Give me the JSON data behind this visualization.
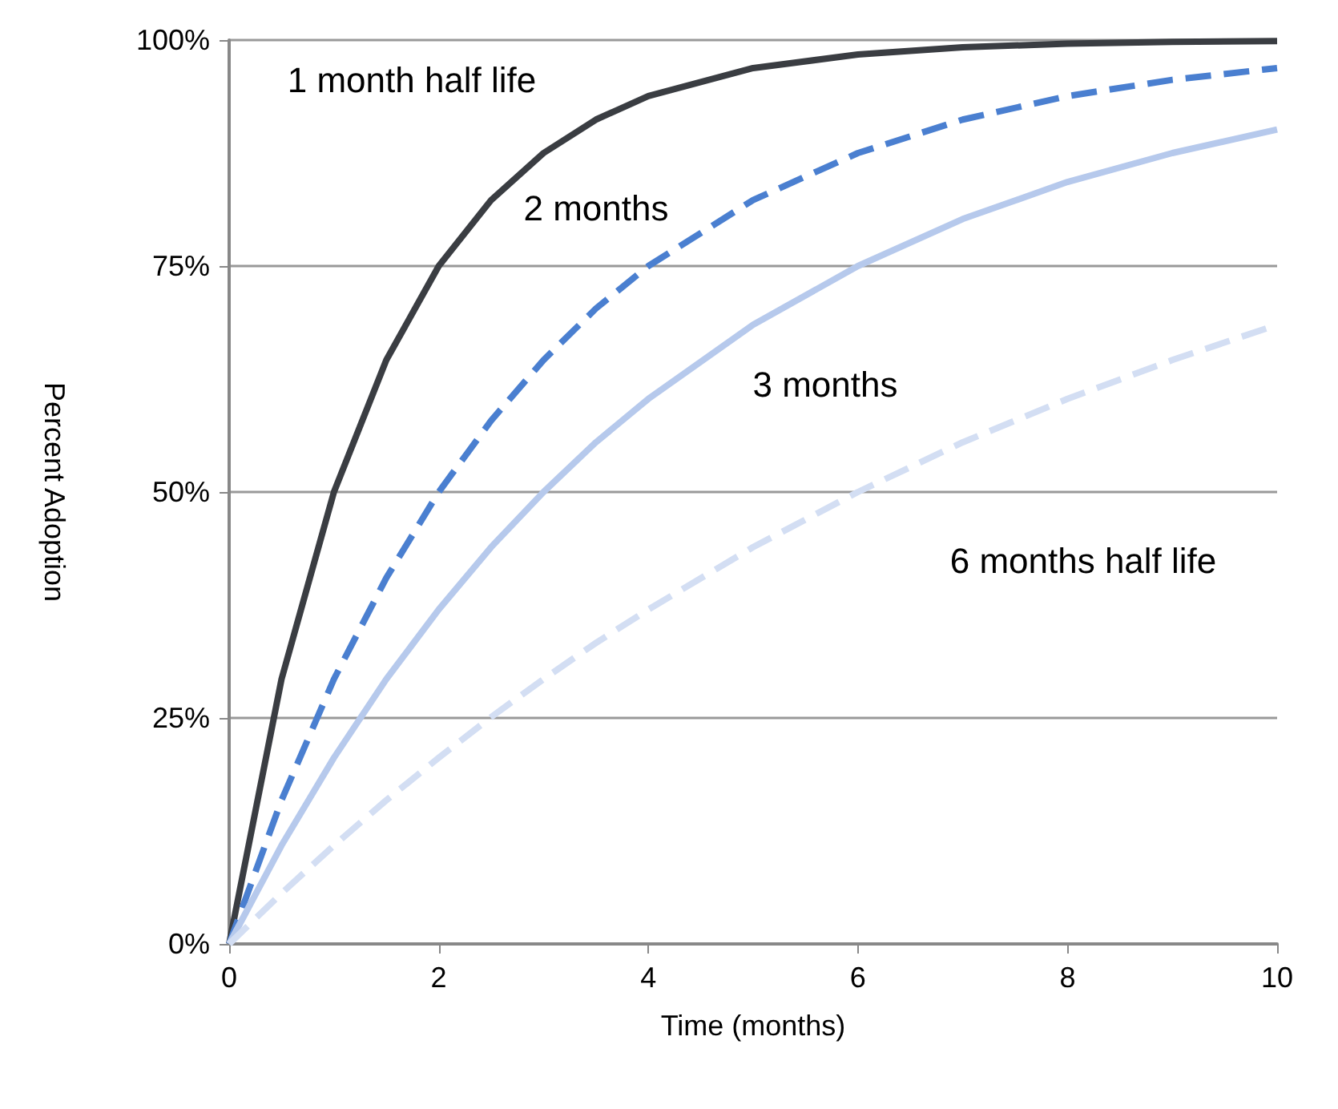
{
  "chart_data": {
    "type": "line",
    "xlabel": "Time (months)",
    "ylabel": "Percent Adoption",
    "x": [
      0,
      0.5,
      1,
      1.5,
      2,
      2.5,
      3,
      3.5,
      4,
      5,
      6,
      7,
      8,
      9,
      10
    ],
    "series": [
      {
        "color": "#3a3d42",
        "line_style": "solid",
        "values": [
          0,
          29.3,
          50,
          64.6,
          75,
          82.3,
          87.5,
          91.2,
          93.8,
          96.9,
          98.4,
          99.2,
          99.6,
          99.8,
          99.9
        ]
      },
      {
        "color": "#4a7fd0",
        "line_style": "dashed",
        "values": [
          0,
          15.9,
          29.3,
          40.5,
          50,
          57.9,
          64.6,
          70.3,
          75,
          82.3,
          87.5,
          91.2,
          93.8,
          95.6,
          96.9
        ]
      },
      {
        "color": "#b6c9ec",
        "line_style": "solid",
        "values": [
          0,
          10.9,
          20.6,
          29.3,
          37,
          43.9,
          50,
          55.5,
          60.3,
          68.5,
          75,
          80.2,
          84.3,
          87.5,
          90.1
        ]
      },
      {
        "color": "#d3def3",
        "line_style": "dashed",
        "values": [
          0,
          5.6,
          10.9,
          15.9,
          20.6,
          25.1,
          29.3,
          33.3,
          37,
          43.9,
          50,
          55.5,
          60.3,
          64.6,
          68.5
        ]
      }
    ],
    "xlim": [
      0,
      10
    ],
    "xticks": [
      0,
      2,
      4,
      6,
      8,
      10
    ],
    "ylim": [
      0,
      100
    ],
    "yticks": [
      {
        "value": 0,
        "label": "0%"
      },
      {
        "value": 25,
        "label": "25%"
      },
      {
        "value": 50,
        "label": "50%"
      },
      {
        "value": 75,
        "label": "75%"
      },
      {
        "value": 100,
        "label": "100%"
      }
    ],
    "grid": "y",
    "marker": "none",
    "annotations": [
      "1 month half life",
      "2 months",
      "3 months",
      "6 months half life"
    ]
  }
}
